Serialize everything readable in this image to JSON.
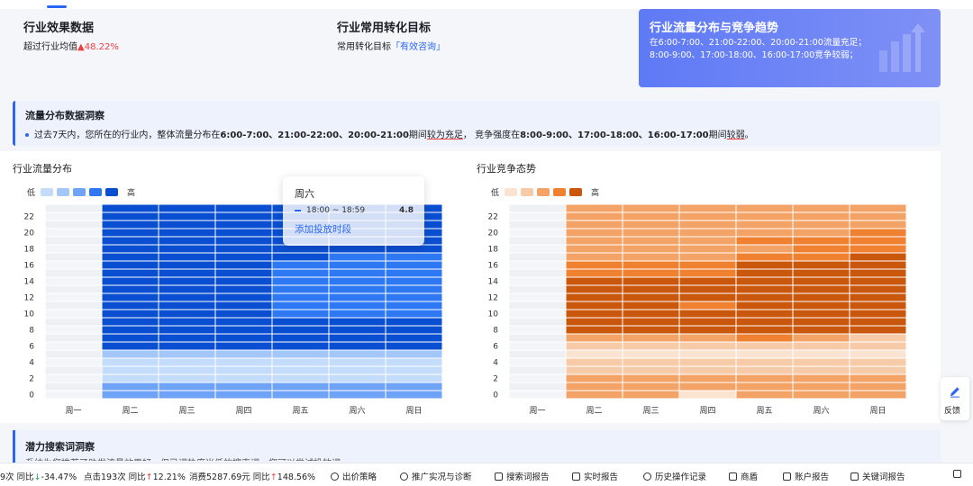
{
  "cards": [
    {
      "title": "行业效果数据",
      "prefix": "超过行业均值",
      "arrow": "▲",
      "value": "48.22%"
    },
    {
      "title": "行业常用转化目标",
      "prefix": "常用转化目标",
      "value": "「有效咨询」"
    },
    {
      "title": "行业流量分布与竞争趋势",
      "desc": "在6:00-7:00、21:00-22:00、20:00-21:00流量充足；8:00-9:00、17:00-18:00、16:00-17:00竞争较弱；"
    }
  ],
  "insight": {
    "title": "流量分布数据洞察",
    "t1": "过去7天内，您所在的行业内，整体流量分布在",
    "t2": "6:00-7:00、21:00-22:00、20:00-21:00",
    "t3": "期间",
    "t4": "较为充足",
    "t5": "，  竞争强度在",
    "t6": "8:00-9:00、17:00-18:00、16:00-17:00",
    "t7": "期间",
    "t8": "较弱",
    "t9": "。"
  },
  "traffic_chart": {
    "title": "行业流量分布",
    "legend_low": "低",
    "legend_high": "高",
    "colors": [
      "#c4dcfb",
      "#a3c7fa",
      "#6fa3f8",
      "#2e78f3",
      "#0a4fd2"
    ]
  },
  "competition_chart": {
    "title": "行业竞争态势",
    "legend_low": "低",
    "legend_high": "高",
    "colors": [
      "#fbe3d2",
      "#f8cba8",
      "#f4a367",
      "#f08130",
      "#c9570c"
    ]
  },
  "tooltip": {
    "day": "周六",
    "time": "18:00 ~ 18:59",
    "value": "4.8",
    "link": "添加投放时段"
  },
  "feedback_label": "反馈",
  "potential": {
    "title": "潜力搜索词洞察",
    "text": "系统为您推荐了助发流量效果好，但已词热度当低的搜索词，您可以尝试投放词"
  },
  "bottom_bar": {
    "m1_prefix": "9次  同比",
    "m1_arrow": "↓",
    "m1_val": "-34.47%",
    "m2_prefix": "点击193次  同比",
    "m2_arrow": "↑",
    "m2_val": "12.21%",
    "m3_prefix": "消费5287.69元  同比",
    "m3_arrow": "↑",
    "m3_val": "148.56%",
    "links": [
      "出价策略",
      "推广实况与诊断",
      "搜索词报告",
      "实时报告",
      "历史操作记录",
      "商盾",
      "账户报告",
      "关键词报告"
    ]
  },
  "chart_data": [
    {
      "type": "heatmap",
      "title": "行业流量分布",
      "x": [
        "周一",
        "周二",
        "周三",
        "周四",
        "周五",
        "周六",
        "周日"
      ],
      "y": [
        0,
        1,
        2,
        3,
        4,
        5,
        6,
        7,
        8,
        9,
        10,
        11,
        12,
        13,
        14,
        15,
        16,
        17,
        18,
        19,
        20,
        21,
        22,
        23
      ],
      "y_ticks": [
        "0",
        "2",
        "4",
        "6",
        "8",
        "10",
        "12",
        "14",
        "16",
        "18",
        "20",
        "22"
      ],
      "value_levels": "0-5 (0 = no data)",
      "values": [
        [
          0,
          3,
          3,
          3,
          3,
          3,
          3
        ],
        [
          0,
          3,
          3,
          3,
          3,
          3,
          3
        ],
        [
          0,
          1,
          1,
          1,
          1,
          1,
          1
        ],
        [
          0,
          1,
          1,
          1,
          1,
          1,
          1
        ],
        [
          0,
          1,
          1,
          1,
          1,
          1,
          1
        ],
        [
          0,
          2,
          2,
          2,
          2,
          2,
          2
        ],
        [
          0,
          5,
          5,
          5,
          5,
          5,
          5
        ],
        [
          0,
          5,
          5,
          5,
          5,
          5,
          5
        ],
        [
          0,
          5,
          5,
          5,
          5,
          5,
          5
        ],
        [
          0,
          5,
          5,
          5,
          5,
          5,
          5
        ],
        [
          0,
          5,
          5,
          5,
          4,
          4,
          4
        ],
        [
          0,
          5,
          5,
          5,
          4,
          4,
          4
        ],
        [
          0,
          5,
          5,
          5,
          4,
          4,
          4
        ],
        [
          0,
          5,
          5,
          5,
          4,
          4,
          4
        ],
        [
          0,
          5,
          5,
          5,
          4,
          4,
          4
        ],
        [
          0,
          5,
          5,
          5,
          4,
          4,
          4
        ],
        [
          0,
          5,
          5,
          5,
          4,
          4,
          4
        ],
        [
          0,
          5,
          5,
          5,
          5,
          4,
          4
        ],
        [
          0,
          5,
          5,
          5,
          5,
          5,
          5
        ],
        [
          0,
          5,
          5,
          5,
          5,
          5,
          5
        ],
        [
          0,
          5,
          5,
          5,
          5,
          5,
          5
        ],
        [
          0,
          5,
          5,
          5,
          5,
          5,
          5
        ],
        [
          0,
          5,
          5,
          5,
          5,
          5,
          5
        ],
        [
          0,
          5,
          5,
          5,
          5,
          5,
          5
        ]
      ]
    },
    {
      "type": "heatmap",
      "title": "行业竞争态势",
      "x": [
        "周一",
        "周二",
        "周三",
        "周四",
        "周五",
        "周六",
        "周日"
      ],
      "y": [
        0,
        1,
        2,
        3,
        4,
        5,
        6,
        7,
        8,
        9,
        10,
        11,
        12,
        13,
        14,
        15,
        16,
        17,
        18,
        19,
        20,
        21,
        22,
        23
      ],
      "y_ticks": [
        "0",
        "2",
        "4",
        "6",
        "8",
        "10",
        "12",
        "14",
        "16",
        "18",
        "20",
        "22"
      ],
      "value_levels": "0-5 (0 = no data)",
      "values": [
        [
          0,
          3,
          3,
          1,
          3,
          3,
          3
        ],
        [
          0,
          3,
          3,
          3,
          3,
          3,
          3
        ],
        [
          0,
          3,
          3,
          3,
          3,
          3,
          3
        ],
        [
          0,
          2,
          2,
          2,
          2,
          2,
          2
        ],
        [
          0,
          2,
          2,
          2,
          2,
          2,
          2
        ],
        [
          0,
          1,
          1,
          1,
          1,
          1,
          1
        ],
        [
          0,
          2,
          2,
          2,
          2,
          2,
          2
        ],
        [
          0,
          3,
          3,
          3,
          4,
          3,
          2
        ],
        [
          0,
          5,
          5,
          5,
          5,
          5,
          5
        ],
        [
          0,
          5,
          5,
          5,
          5,
          5,
          5
        ],
        [
          0,
          5,
          5,
          5,
          5,
          5,
          5
        ],
        [
          0,
          5,
          5,
          4,
          5,
          5,
          5
        ],
        [
          0,
          5,
          5,
          5,
          5,
          5,
          5
        ],
        [
          0,
          5,
          5,
          5,
          5,
          5,
          5
        ],
        [
          0,
          5,
          5,
          5,
          5,
          5,
          5
        ],
        [
          0,
          4,
          4,
          4,
          5,
          5,
          5
        ],
        [
          0,
          4,
          4,
          4,
          5,
          5,
          5
        ],
        [
          0,
          3,
          3,
          3,
          4,
          4,
          5
        ],
        [
          0,
          3,
          3,
          3,
          3,
          4,
          4
        ],
        [
          0,
          3,
          3,
          3,
          4,
          4,
          4
        ],
        [
          0,
          3,
          3,
          3,
          3,
          3,
          4
        ],
        [
          0,
          3,
          3,
          3,
          3,
          3,
          3
        ],
        [
          0,
          3,
          3,
          3,
          3,
          3,
          3
        ],
        [
          0,
          3,
          3,
          3,
          3,
          3,
          3
        ]
      ]
    }
  ]
}
